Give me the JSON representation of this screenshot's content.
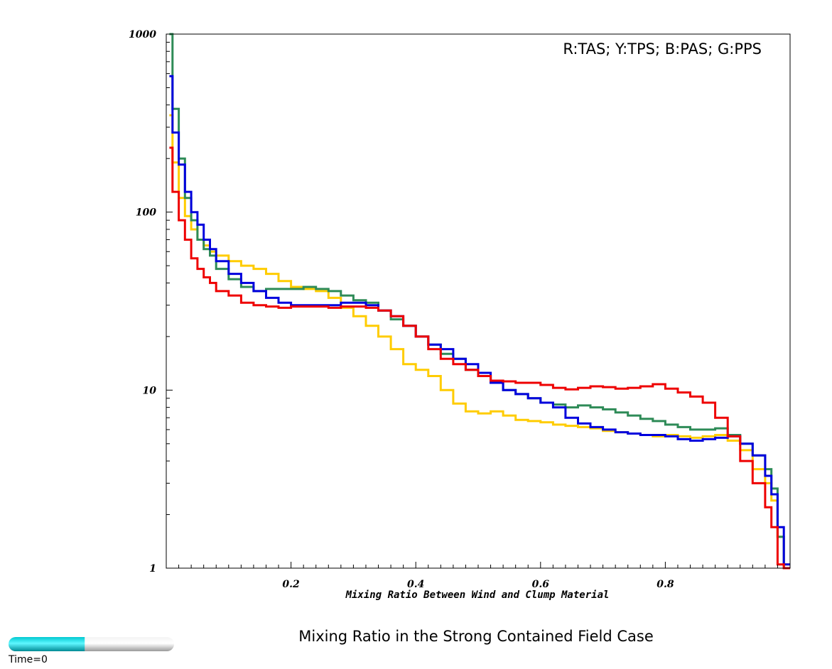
{
  "chart_data": {
    "type": "line",
    "title": "Mixing Ratio in the Strong Contained Field Case",
    "xlabel": "Mixing Ratio Between Wind and Clump Material",
    "ylabel": "",
    "y_scale": "log",
    "xlim": [
      0,
      1
    ],
    "ylim": [
      1,
      1000
    ],
    "x_ticks": [
      "0.2",
      "0.4",
      "0.6",
      "0.8"
    ],
    "x_tick_values": [
      0.2,
      0.4,
      0.6,
      0.8
    ],
    "y_ticks": [
      "1",
      "10",
      "100",
      "1000"
    ],
    "y_tick_values": [
      1,
      10,
      100,
      1000
    ],
    "legend_text": "R:TAS; Y:TPS; B:PAS; G:PPS",
    "legend_position": "top-right",
    "grid": false,
    "series": [
      {
        "code": "Y",
        "color": "#ffcc00",
        "x": [
          0.01,
          0.02,
          0.03,
          0.04,
          0.05,
          0.06,
          0.07,
          0.08,
          0.1,
          0.12,
          0.14,
          0.16,
          0.18,
          0.2,
          0.22,
          0.24,
          0.26,
          0.28,
          0.3,
          0.32,
          0.34,
          0.36,
          0.38,
          0.4,
          0.42,
          0.44,
          0.46,
          0.48,
          0.5,
          0.52,
          0.54,
          0.56,
          0.58,
          0.6,
          0.62,
          0.64,
          0.66,
          0.68,
          0.7,
          0.72,
          0.74,
          0.76,
          0.78,
          0.8,
          0.82,
          0.84,
          0.86,
          0.88,
          0.9,
          0.92,
          0.94,
          0.96,
          0.97,
          0.98,
          0.99,
          1.0
        ],
        "values": [
          350,
          190,
          120,
          95,
          80,
          70,
          65,
          60,
          57,
          53,
          50,
          48,
          45,
          41,
          38,
          37,
          36,
          33,
          29,
          26,
          23,
          20,
          17,
          14,
          13,
          12,
          10,
          8.4,
          7.6,
          7.4,
          7.6,
          7.2,
          6.8,
          6.7,
          6.6,
          6.4,
          6.3,
          6.2,
          6.1,
          5.9,
          5.8,
          5.7,
          5.6,
          5.5,
          5.6,
          5.5,
          5.4,
          5.5,
          5.6,
          5.2,
          4.6,
          3.6,
          3.0,
          2.4,
          1.5,
          1.05
        ]
      },
      {
        "code": "G",
        "color": "#2e8b57",
        "x": [
          0.01,
          0.02,
          0.03,
          0.04,
          0.05,
          0.06,
          0.07,
          0.08,
          0.1,
          0.12,
          0.14,
          0.16,
          0.18,
          0.2,
          0.22,
          0.24,
          0.26,
          0.28,
          0.3,
          0.32,
          0.34,
          0.36,
          0.38,
          0.4,
          0.42,
          0.44,
          0.46,
          0.48,
          0.5,
          0.52,
          0.54,
          0.56,
          0.58,
          0.6,
          0.62,
          0.64,
          0.66,
          0.68,
          0.7,
          0.72,
          0.74,
          0.76,
          0.78,
          0.8,
          0.82,
          0.84,
          0.86,
          0.88,
          0.9,
          0.92,
          0.94,
          0.96,
          0.97,
          0.98,
          0.99,
          1.0
        ],
        "values": [
          1000,
          380,
          200,
          120,
          90,
          70,
          62,
          57,
          48,
          42,
          38,
          36,
          37,
          37,
          37,
          38,
          37,
          36,
          34,
          32,
          31,
          28,
          25,
          23,
          20,
          18,
          16,
          15,
          13,
          12,
          11,
          10,
          9.5,
          9,
          8.5,
          8.3,
          8,
          8.2,
          8,
          7.8,
          7.5,
          7.2,
          6.9,
          6.7,
          6.4,
          6.2,
          6.0,
          6.0,
          6.1,
          5.6,
          5.0,
          4.3,
          3.6,
          2.8,
          1.5,
          1.0
        ]
      },
      {
        "code": "B",
        "color": "#0000dd",
        "x": [
          0.01,
          0.02,
          0.03,
          0.04,
          0.05,
          0.06,
          0.07,
          0.08,
          0.1,
          0.12,
          0.14,
          0.16,
          0.18,
          0.2,
          0.22,
          0.24,
          0.26,
          0.28,
          0.3,
          0.32,
          0.34,
          0.36,
          0.38,
          0.4,
          0.42,
          0.44,
          0.46,
          0.48,
          0.5,
          0.52,
          0.54,
          0.56,
          0.58,
          0.6,
          0.62,
          0.64,
          0.66,
          0.68,
          0.7,
          0.72,
          0.74,
          0.76,
          0.78,
          0.8,
          0.82,
          0.84,
          0.86,
          0.88,
          0.9,
          0.92,
          0.94,
          0.96,
          0.97,
          0.98,
          0.99,
          1.0
        ],
        "values": [
          580,
          280,
          185,
          130,
          100,
          85,
          70,
          62,
          53,
          45,
          40,
          36,
          33,
          31,
          30,
          30,
          30,
          30,
          31,
          31,
          30,
          28,
          26,
          23,
          20,
          18,
          17,
          15,
          14,
          12.5,
          11,
          10,
          9.5,
          9,
          8.5,
          8,
          7,
          6.5,
          6.2,
          6.0,
          5.8,
          5.7,
          5.6,
          5.6,
          5.5,
          5.3,
          5.2,
          5.3,
          5.4,
          5.5,
          5.0,
          4.3,
          3.3,
          2.6,
          1.7,
          1.05
        ]
      },
      {
        "code": "R",
        "color": "#ee0000",
        "x": [
          0.01,
          0.02,
          0.03,
          0.04,
          0.05,
          0.06,
          0.07,
          0.08,
          0.1,
          0.12,
          0.14,
          0.16,
          0.18,
          0.2,
          0.22,
          0.24,
          0.26,
          0.28,
          0.3,
          0.32,
          0.34,
          0.36,
          0.38,
          0.4,
          0.42,
          0.44,
          0.46,
          0.48,
          0.5,
          0.52,
          0.54,
          0.56,
          0.58,
          0.6,
          0.62,
          0.64,
          0.66,
          0.68,
          0.7,
          0.72,
          0.74,
          0.76,
          0.78,
          0.8,
          0.82,
          0.84,
          0.86,
          0.88,
          0.9,
          0.92,
          0.94,
          0.96,
          0.97,
          0.98,
          0.99,
          1.0
        ],
        "values": [
          230,
          130,
          90,
          70,
          55,
          48,
          43,
          40,
          36,
          34,
          31,
          30,
          29.5,
          29,
          29.5,
          29.5,
          29.5,
          29,
          29.5,
          29.5,
          29,
          28,
          26,
          23,
          20,
          17,
          15,
          14,
          13,
          12,
          11.3,
          11.2,
          11,
          11,
          10.7,
          10.3,
          10.1,
          10.3,
          10.5,
          10.4,
          10.2,
          10.3,
          10.5,
          10.8,
          10.2,
          9.7,
          9.2,
          8.5,
          7.0,
          5.5,
          4.0,
          3.0,
          2.2,
          1.7,
          1.05,
          1.0
        ]
      }
    ]
  },
  "time_label": "Time=0",
  "time_progress": 0.46
}
